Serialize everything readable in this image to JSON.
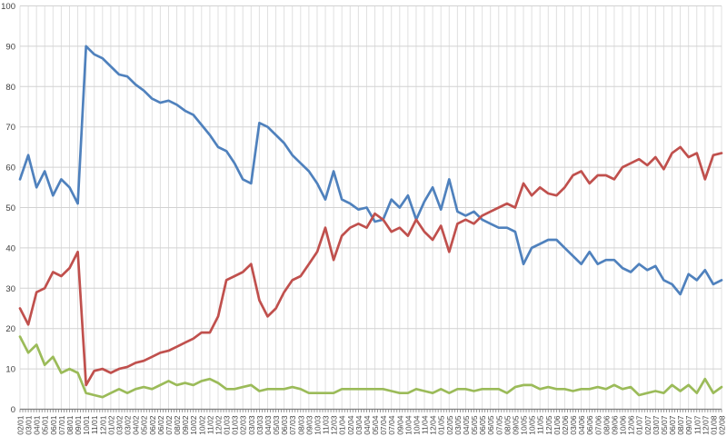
{
  "chart": {
    "background": "#ffffff",
    "grid_vertical_color": "#e0e0e0",
    "grid_horizontal_color": "#d2d2d2",
    "axis_color": "#808080",
    "label_color": "#3f3f3f"
  },
  "chart_data": {
    "type": "line",
    "title": "",
    "xlabel": "",
    "ylabel": "",
    "ylim": [
      0,
      100
    ],
    "y_ticks": [
      0,
      10,
      20,
      30,
      40,
      50,
      60,
      70,
      80,
      90,
      100
    ],
    "grid": "on",
    "legend_position": "none",
    "x_labels": [
      "02/01",
      "03/01",
      "04/01",
      "05/01",
      "06/01",
      "07/01",
      "08/01",
      "09/01",
      "10/01",
      "11/01",
      "12/01",
      "01/02",
      "03/02",
      "03/02",
      "04/02",
      "05/02",
      "06/02",
      "06/02",
      "07/02",
      "08/02",
      "09/02",
      "10/02",
      "10/02",
      "11/02",
      "12/02",
      "01/03",
      "01/03",
      "02/03",
      "03/03",
      "03/03",
      "04/03",
      "05/03",
      "06/03",
      "07/03",
      "08/03",
      "09/03",
      "10/03",
      "11/03",
      "12/03",
      "01/04",
      "02/04",
      "03/04",
      "04/04",
      "05/04",
      "07/04",
      "07/04",
      "09/04",
      "10/04",
      "10/04",
      "11/04",
      "12/04",
      "01/05",
      "02/05",
      "03/05",
      "04/05",
      "05/05",
      "06/05",
      "06/05",
      "07/05",
      "08/05",
      "09/05",
      "10/05",
      "10/05",
      "11/05",
      "12/05",
      "01/06",
      "02/06",
      "03/06",
      "04/06",
      "06/06",
      "07/06",
      "08/06",
      "09/06",
      "10/06",
      "12/06",
      "01/07",
      "02/07",
      "03/07",
      "05/07",
      "06/07",
      "08/07",
      "09/07",
      "11/07",
      "12/07",
      "01/08",
      "02/08"
    ],
    "series": [
      {
        "name": "blue-line",
        "color": "#4F81BD",
        "values": [
          57,
          63,
          55,
          59,
          53,
          57,
          55,
          51,
          90,
          88,
          87,
          85,
          83,
          82.5,
          80.5,
          79,
          77,
          76,
          76.5,
          75.5,
          74,
          73,
          70.5,
          68,
          65,
          64,
          61,
          57,
          56,
          71,
          70,
          68,
          66,
          63,
          61,
          59,
          56,
          52,
          59,
          52,
          51,
          49.5,
          50,
          46.5,
          47,
          52,
          50,
          53,
          47,
          51.5,
          55,
          49.5,
          57,
          49,
          48,
          49,
          47,
          46,
          45,
          45,
          44,
          36,
          40,
          41,
          42,
          42,
          40,
          38,
          36,
          39,
          36,
          37,
          37,
          35,
          34,
          36,
          34.5,
          35.5,
          32,
          31,
          28.5,
          33.5,
          32,
          34.5,
          31,
          32
        ]
      },
      {
        "name": "red-line",
        "color": "#C0504D",
        "values": [
          25,
          21,
          29,
          30,
          34,
          33,
          35,
          39,
          6,
          9.5,
          10,
          9,
          10,
          10.5,
          11.5,
          12,
          13,
          14,
          14.5,
          15.5,
          16.5,
          17.5,
          19,
          19,
          23,
          32,
          33,
          34,
          36,
          27,
          23,
          25,
          29,
          32,
          33,
          36,
          39,
          45,
          37,
          43,
          45,
          46,
          45,
          48.5,
          47,
          44,
          45,
          43,
          47,
          44,
          42,
          45.5,
          39,
          46,
          47,
          46,
          48,
          49,
          50,
          51,
          50,
          56,
          53,
          55,
          53.5,
          53,
          55,
          58,
          59,
          56,
          58,
          58,
          57,
          60,
          61,
          62,
          60.5,
          62.5,
          59.5,
          63.5,
          65,
          62.5,
          63.5,
          57,
          63,
          63.5
        ]
      },
      {
        "name": "green-line",
        "color": "#9BBB59",
        "values": [
          18,
          14,
          16,
          11,
          13,
          9,
          10,
          9,
          4,
          3.5,
          3,
          4,
          5,
          4,
          5,
          5.5,
          5,
          6,
          7,
          6,
          6.5,
          6,
          7,
          7.5,
          6.5,
          5,
          5,
          5.5,
          6,
          4.5,
          5,
          5,
          5,
          5.5,
          5,
          4,
          4,
          4,
          4,
          5,
          5,
          5,
          5,
          5,
          5,
          4.5,
          4,
          4,
          5,
          4.5,
          4,
          5,
          4,
          5,
          5,
          4.5,
          5,
          5,
          5,
          4,
          5.5,
          6,
          6,
          5,
          5.5,
          5,
          5,
          4.5,
          5,
          5,
          5.5,
          5,
          6,
          5,
          5.5,
          3.5,
          4,
          4.5,
          4,
          6,
          4.5,
          6,
          4,
          7.5,
          4,
          5.5
        ]
      }
    ]
  }
}
